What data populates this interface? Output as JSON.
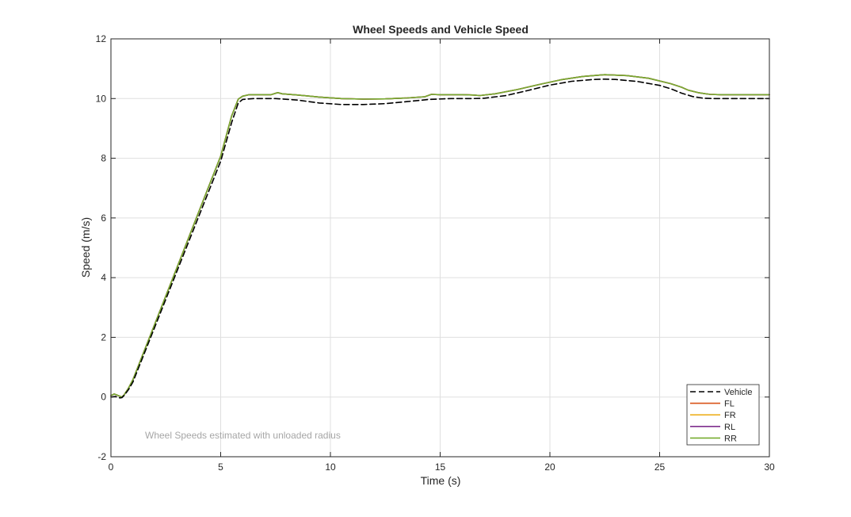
{
  "chart_data": {
    "type": "line",
    "title": "Wheel Speeds and Vehicle Speed",
    "xlabel": "Time (s)",
    "ylabel": "Speed (m/s)",
    "xlim": [
      0,
      30
    ],
    "ylim": [
      -2,
      12
    ],
    "xticks": [
      0,
      5,
      10,
      15,
      20,
      25,
      30
    ],
    "yticks": [
      -2,
      0,
      2,
      4,
      6,
      8,
      10,
      12
    ],
    "grid": true,
    "legend_position": "bottom-right",
    "annotation": "Wheel Speeds estimated with unloaded radius",
    "series": [
      {
        "name": "Vehicle",
        "color": "#000000",
        "style": "dashed",
        "points": [
          [
            0,
            0
          ],
          [
            0.2,
            0.02
          ],
          [
            0.4,
            -0.03
          ],
          [
            0.5,
            -0.02
          ],
          [
            0.6,
            0.05
          ],
          [
            0.8,
            0.25
          ],
          [
            1,
            0.5
          ],
          [
            2,
            2.35
          ],
          [
            3,
            4.2
          ],
          [
            4,
            6.05
          ],
          [
            5,
            7.9
          ],
          [
            5.5,
            9.2
          ],
          [
            5.8,
            9.85
          ],
          [
            6,
            9.97
          ],
          [
            6.5,
            10
          ],
          [
            7.5,
            10
          ],
          [
            8.5,
            9.95
          ],
          [
            9.5,
            9.85
          ],
          [
            10.5,
            9.8
          ],
          [
            11.5,
            9.8
          ],
          [
            12.5,
            9.83
          ],
          [
            13.5,
            9.9
          ],
          [
            14.5,
            9.97
          ],
          [
            15.5,
            10
          ],
          [
            16.5,
            10
          ],
          [
            17,
            10.01
          ],
          [
            18,
            10.1
          ],
          [
            19,
            10.27
          ],
          [
            20,
            10.45
          ],
          [
            21,
            10.58
          ],
          [
            22,
            10.64
          ],
          [
            22.5,
            10.65
          ],
          [
            23,
            10.64
          ],
          [
            24,
            10.57
          ],
          [
            25,
            10.44
          ],
          [
            25.5,
            10.33
          ],
          [
            26,
            10.18
          ],
          [
            26.5,
            10.07
          ],
          [
            27,
            10.01
          ],
          [
            27.5,
            10
          ],
          [
            30,
            10
          ]
        ]
      },
      {
        "name": "FL",
        "color": "#d95319",
        "style": "solid",
        "points": [
          [
            0,
            0.05
          ],
          [
            0.15,
            0.1
          ],
          [
            0.3,
            0.06
          ],
          [
            0.5,
            0
          ],
          [
            0.6,
            0.07
          ],
          [
            0.8,
            0.3
          ],
          [
            1,
            0.58
          ],
          [
            2,
            2.45
          ],
          [
            3,
            4.32
          ],
          [
            4,
            6.2
          ],
          [
            5,
            8.07
          ],
          [
            5.5,
            9.42
          ],
          [
            5.8,
            9.98
          ],
          [
            6,
            10.08
          ],
          [
            6.3,
            10.13
          ],
          [
            7,
            10.13
          ],
          [
            7.3,
            10.13
          ],
          [
            7.6,
            10.2
          ],
          [
            7.8,
            10.16
          ],
          [
            8.5,
            10.12
          ],
          [
            9.5,
            10.05
          ],
          [
            10.5,
            10
          ],
          [
            11.5,
            9.98
          ],
          [
            12.5,
            9.99
          ],
          [
            13.5,
            10.02
          ],
          [
            14.3,
            10.06
          ],
          [
            14.6,
            10.14
          ],
          [
            15,
            10.13
          ],
          [
            16,
            10.13
          ],
          [
            16.5,
            10.12
          ],
          [
            16.8,
            10.1
          ],
          [
            17.5,
            10.16
          ],
          [
            18.5,
            10.3
          ],
          [
            19.5,
            10.47
          ],
          [
            20.5,
            10.63
          ],
          [
            21.5,
            10.74
          ],
          [
            22.5,
            10.8
          ],
          [
            23.5,
            10.77
          ],
          [
            24.5,
            10.68
          ],
          [
            25.5,
            10.5
          ],
          [
            26,
            10.38
          ],
          [
            26.3,
            10.28
          ],
          [
            26.8,
            10.19
          ],
          [
            27.3,
            10.14
          ],
          [
            27.8,
            10.13
          ],
          [
            30,
            10.13
          ]
        ]
      },
      {
        "name": "FR",
        "color": "#edb120",
        "style": "solid",
        "points": [
          [
            0,
            0.05
          ],
          [
            0.15,
            0.1
          ],
          [
            0.3,
            0.06
          ],
          [
            0.5,
            0
          ],
          [
            0.6,
            0.07
          ],
          [
            0.8,
            0.3
          ],
          [
            1,
            0.58
          ],
          [
            2,
            2.45
          ],
          [
            3,
            4.32
          ],
          [
            4,
            6.2
          ],
          [
            5,
            8.07
          ],
          [
            5.5,
            9.42
          ],
          [
            5.8,
            9.98
          ],
          [
            6,
            10.08
          ],
          [
            6.3,
            10.13
          ],
          [
            7,
            10.13
          ],
          [
            7.3,
            10.13
          ],
          [
            7.6,
            10.2
          ],
          [
            7.8,
            10.16
          ],
          [
            8.5,
            10.12
          ],
          [
            9.5,
            10.05
          ],
          [
            10.5,
            10
          ],
          [
            11.5,
            9.98
          ],
          [
            12.5,
            9.99
          ],
          [
            13.5,
            10.02
          ],
          [
            14.3,
            10.06
          ],
          [
            14.6,
            10.14
          ],
          [
            15,
            10.13
          ],
          [
            16,
            10.13
          ],
          [
            16.5,
            10.12
          ],
          [
            16.8,
            10.1
          ],
          [
            17.5,
            10.16
          ],
          [
            18.5,
            10.3
          ],
          [
            19.5,
            10.47
          ],
          [
            20.5,
            10.63
          ],
          [
            21.5,
            10.74
          ],
          [
            22.5,
            10.8
          ],
          [
            23.5,
            10.77
          ],
          [
            24.5,
            10.68
          ],
          [
            25.5,
            10.5
          ],
          [
            26,
            10.38
          ],
          [
            26.3,
            10.28
          ],
          [
            26.8,
            10.19
          ],
          [
            27.3,
            10.14
          ],
          [
            27.8,
            10.13
          ],
          [
            30,
            10.13
          ]
        ]
      },
      {
        "name": "RL",
        "color": "#7e2f8e",
        "style": "solid",
        "points": [
          [
            0,
            0.05
          ],
          [
            0.15,
            0.1
          ],
          [
            0.3,
            0.06
          ],
          [
            0.5,
            0
          ],
          [
            0.6,
            0.07
          ],
          [
            0.8,
            0.3
          ],
          [
            1,
            0.58
          ],
          [
            2,
            2.45
          ],
          [
            3,
            4.32
          ],
          [
            4,
            6.2
          ],
          [
            5,
            8.07
          ],
          [
            5.5,
            9.42
          ],
          [
            5.8,
            9.98
          ],
          [
            6,
            10.08
          ],
          [
            6.3,
            10.13
          ],
          [
            7,
            10.13
          ],
          [
            7.3,
            10.13
          ],
          [
            7.6,
            10.2
          ],
          [
            7.8,
            10.16
          ],
          [
            8.5,
            10.12
          ],
          [
            9.5,
            10.05
          ],
          [
            10.5,
            10
          ],
          [
            11.5,
            9.98
          ],
          [
            12.5,
            9.99
          ],
          [
            13.5,
            10.02
          ],
          [
            14.3,
            10.06
          ],
          [
            14.6,
            10.14
          ],
          [
            15,
            10.13
          ],
          [
            16,
            10.13
          ],
          [
            16.5,
            10.12
          ],
          [
            16.8,
            10.1
          ],
          [
            17.5,
            10.16
          ],
          [
            18.5,
            10.3
          ],
          [
            19.5,
            10.47
          ],
          [
            20.5,
            10.63
          ],
          [
            21.5,
            10.74
          ],
          [
            22.5,
            10.8
          ],
          [
            23.5,
            10.77
          ],
          [
            24.5,
            10.68
          ],
          [
            25.5,
            10.5
          ],
          [
            26,
            10.38
          ],
          [
            26.3,
            10.28
          ],
          [
            26.8,
            10.19
          ],
          [
            27.3,
            10.14
          ],
          [
            27.8,
            10.13
          ],
          [
            30,
            10.13
          ]
        ]
      },
      {
        "name": "RR",
        "color": "#77ac30",
        "style": "solid",
        "points": [
          [
            0,
            0.05
          ],
          [
            0.15,
            0.1
          ],
          [
            0.3,
            0.06
          ],
          [
            0.5,
            0
          ],
          [
            0.6,
            0.07
          ],
          [
            0.8,
            0.3
          ],
          [
            1,
            0.58
          ],
          [
            2,
            2.45
          ],
          [
            3,
            4.32
          ],
          [
            4,
            6.2
          ],
          [
            5,
            8.07
          ],
          [
            5.5,
            9.42
          ],
          [
            5.8,
            9.98
          ],
          [
            6,
            10.08
          ],
          [
            6.3,
            10.13
          ],
          [
            7,
            10.13
          ],
          [
            7.3,
            10.13
          ],
          [
            7.6,
            10.2
          ],
          [
            7.8,
            10.16
          ],
          [
            8.5,
            10.12
          ],
          [
            9.5,
            10.05
          ],
          [
            10.5,
            10
          ],
          [
            11.5,
            9.98
          ],
          [
            12.5,
            9.99
          ],
          [
            13.5,
            10.02
          ],
          [
            14.3,
            10.06
          ],
          [
            14.6,
            10.14
          ],
          [
            15,
            10.13
          ],
          [
            16,
            10.13
          ],
          [
            16.5,
            10.12
          ],
          [
            16.8,
            10.1
          ],
          [
            17.5,
            10.16
          ],
          [
            18.5,
            10.3
          ],
          [
            19.5,
            10.47
          ],
          [
            20.5,
            10.63
          ],
          [
            21.5,
            10.74
          ],
          [
            22.5,
            10.8
          ],
          [
            23.5,
            10.77
          ],
          [
            24.5,
            10.68
          ],
          [
            25.5,
            10.5
          ],
          [
            26,
            10.38
          ],
          [
            26.3,
            10.28
          ],
          [
            26.8,
            10.19
          ],
          [
            27.3,
            10.14
          ],
          [
            27.8,
            10.13
          ],
          [
            30,
            10.13
          ]
        ]
      }
    ]
  }
}
